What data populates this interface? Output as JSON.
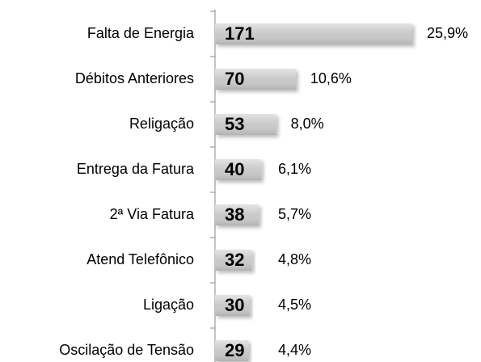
{
  "chart_data": {
    "type": "bar",
    "orientation": "horizontal",
    "categories": [
      "Falta de Energia",
      "Débitos Anteriores",
      "Religação",
      "Entrega da Fatura",
      "2ª Via Fatura",
      "Atend Telefônico",
      "Ligação",
      "Oscilação de Tensão"
    ],
    "values": [
      171,
      70,
      53,
      40,
      38,
      32,
      30,
      29
    ],
    "color": "#c9c9c9",
    "shares": {
      "values": [
        25.9,
        10.6,
        8.0,
        6.1,
        5.7,
        4.8,
        4.5,
        4.4
      ],
      "value_labels": [
        "25,9%",
        "10,6%",
        "8,0%",
        "6,1%",
        "5,7%",
        "4,8%",
        "4,5%",
        "4,4%"
      ]
    }
  }
}
